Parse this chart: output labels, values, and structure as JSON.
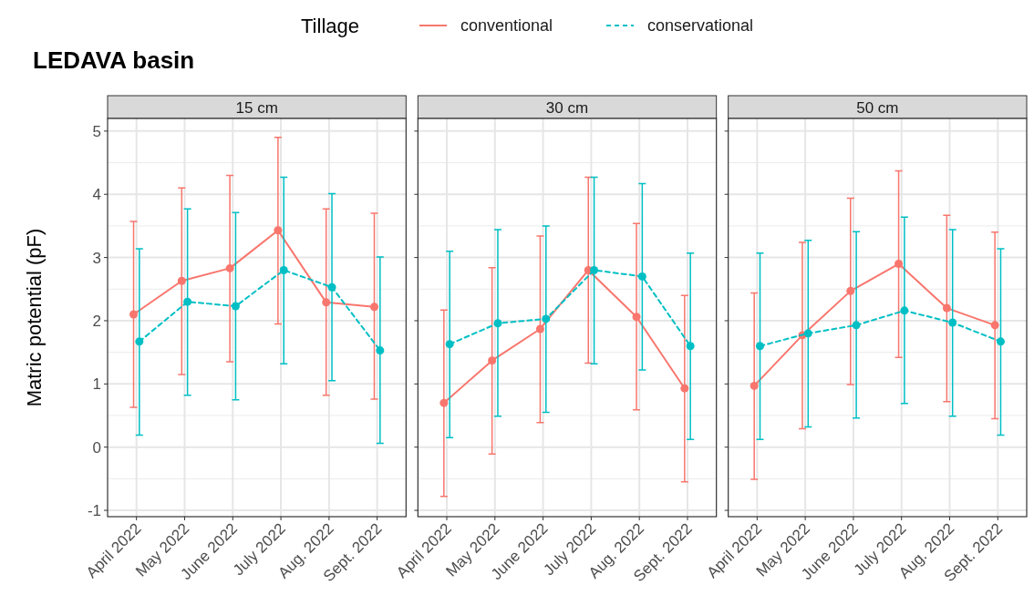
{
  "chart_data": [
    {
      "type": "line",
      "title": "15 cm",
      "annotations": [
        "LEDAVA basin"
      ],
      "ylabel": "Matric potential (pF)",
      "legend_title": "Tillage",
      "legend": "top",
      "grid": true,
      "marker": "circle",
      "categories": [
        "April 2022",
        "May 2022",
        "June 2022",
        "July 2022",
        "Aug. 2022",
        "Sept. 2022"
      ],
      "ylim": [
        -1.1,
        5.2
      ],
      "yticks": [
        -1,
        0,
        1,
        2,
        3,
        4,
        5
      ],
      "series": [
        {
          "name": "conventional",
          "color": "#f8766d",
          "line_style": "solid",
          "values": [
            2.1,
            2.63,
            2.83,
            3.43,
            2.29,
            2.22
          ],
          "errors": [
            [
              0.63,
              3.57
            ],
            [
              1.15,
              4.1
            ],
            [
              1.35,
              4.3
            ],
            [
              1.95,
              4.9
            ],
            [
              0.82,
              3.77
            ],
            [
              0.76,
              3.7
            ]
          ]
        },
        {
          "name": "conservational",
          "color": "#00bfc4",
          "line_style": "dashed",
          "values": [
            1.67,
            2.3,
            2.23,
            2.8,
            2.53,
            1.53
          ],
          "errors": [
            [
              0.19,
              3.14
            ],
            [
              0.82,
              3.77
            ],
            [
              0.75,
              3.71
            ],
            [
              1.32,
              4.27
            ],
            [
              1.05,
              4.01
            ],
            [
              0.06,
              3.01
            ]
          ]
        }
      ]
    },
    {
      "type": "line",
      "title": "30 cm",
      "grid": true,
      "marker": "circle",
      "tick_labels": "x",
      "categories": [
        "April 2022",
        "May 2022",
        "June 2022",
        "July 2022",
        "Aug. 2022",
        "Sept. 2022"
      ],
      "ylim": [
        -1.1,
        5.2
      ],
      "yticks": [
        -1,
        0,
        1,
        2,
        3,
        4,
        5
      ],
      "series": [
        {
          "color": "#f8766d",
          "line_style": "solid",
          "values": [
            0.7,
            1.37,
            1.87,
            2.8,
            2.06,
            0.93
          ],
          "errors": [
            [
              -0.78,
              2.17
            ],
            [
              -0.11,
              2.84
            ],
            [
              0.39,
              3.34
            ],
            [
              1.33,
              4.27
            ],
            [
              0.59,
              3.54
            ],
            [
              -0.55,
              2.4
            ]
          ]
        },
        {
          "color": "#00bfc4",
          "line_style": "dashed",
          "values": [
            1.63,
            1.96,
            2.03,
            2.8,
            2.7,
            1.6
          ],
          "errors": [
            [
              0.15,
              3.1
            ],
            [
              0.49,
              3.44
            ],
            [
              0.55,
              3.5
            ],
            [
              1.32,
              4.27
            ],
            [
              1.22,
              4.17
            ],
            [
              0.12,
              3.07
            ]
          ]
        }
      ]
    },
    {
      "type": "line",
      "title": "50 cm",
      "grid": true,
      "marker": "circle",
      "tick_labels": "x",
      "categories": [
        "April 2022",
        "May 2022",
        "June 2022",
        "July 2022",
        "Aug. 2022",
        "Sept. 2022"
      ],
      "ylim": [
        -1.1,
        5.2
      ],
      "yticks": [
        -1,
        0,
        1,
        2,
        3,
        4,
        5
      ],
      "series": [
        {
          "color": "#f8766d",
          "line_style": "solid",
          "values": [
            0.97,
            1.77,
            2.47,
            2.9,
            2.2,
            1.93
          ],
          "errors": [
            [
              -0.51,
              2.44
            ],
            [
              0.29,
              3.24
            ],
            [
              0.99,
              3.94
            ],
            [
              1.42,
              4.37
            ],
            [
              0.72,
              3.67
            ],
            [
              0.45,
              3.4
            ]
          ]
        },
        {
          "color": "#00bfc4",
          "line_style": "dashed",
          "values": [
            1.6,
            1.8,
            1.93,
            2.16,
            1.97,
            1.67
          ],
          "errors": [
            [
              0.12,
              3.07
            ],
            [
              0.32,
              3.27
            ],
            [
              0.46,
              3.41
            ],
            [
              0.69,
              3.64
            ],
            [
              0.49,
              3.44
            ],
            [
              0.19,
              3.14
            ]
          ]
        }
      ]
    }
  ]
}
